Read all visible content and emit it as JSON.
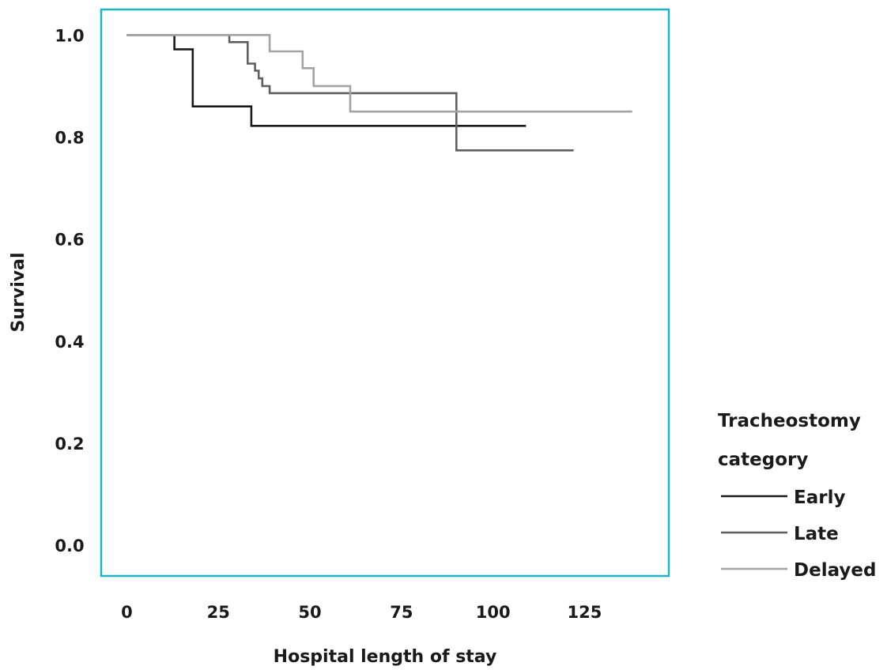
{
  "chart_data": {
    "type": "line",
    "step": true,
    "xlabel": "Hospital length of stay",
    "ylabel": "Survival",
    "xlim": [
      -7,
      148
    ],
    "ylim": [
      -0.06,
      1.05
    ],
    "xticks": [
      0,
      25,
      50,
      75,
      100,
      125
    ],
    "yticks": [
      0.0,
      0.2,
      0.4,
      0.6,
      0.8,
      1.0
    ],
    "xtick_labels": [
      "0",
      "25",
      "50",
      "75",
      "100",
      "125"
    ],
    "ytick_labels": [
      "0.0",
      "0.2",
      "0.4",
      "0.6",
      "0.8",
      "1.0"
    ],
    "frame_color": "#1fb5be",
    "grid": false,
    "legend": {
      "title_lines": [
        "Tracheostomy",
        "category"
      ],
      "position": "right"
    },
    "series": [
      {
        "name": "Early",
        "color": "#1a1a1a",
        "x": [
          0,
          13,
          18,
          34,
          109
        ],
        "y": [
          1.0,
          0.972,
          0.86,
          0.822,
          0.822
        ]
      },
      {
        "name": "Late",
        "color": "#5f5f5f",
        "x": [
          0,
          28,
          33,
          35,
          36,
          37,
          39,
          90,
          122
        ],
        "y": [
          1.0,
          0.986,
          0.944,
          0.93,
          0.915,
          0.9,
          0.886,
          0.774,
          0.774
        ]
      },
      {
        "name": "Delayed",
        "color": "#a3a3a3",
        "x": [
          0,
          39,
          48,
          51,
          61,
          138
        ],
        "y": [
          1.0,
          0.968,
          0.935,
          0.9,
          0.85,
          0.85
        ]
      }
    ]
  }
}
